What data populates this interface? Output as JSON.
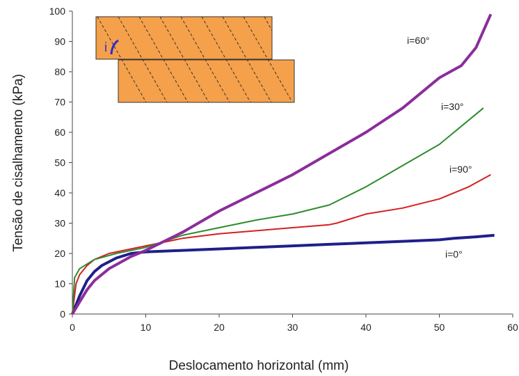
{
  "chart_data": {
    "type": "line",
    "x_label": "Deslocamento horizontal (mm)",
    "y_label": "Tensão de cisalhamento (kPa)",
    "inset_label": "i",
    "xlim": [
      0,
      60
    ],
    "xticks": [
      0,
      10,
      20,
      30,
      40,
      50,
      60
    ],
    "ylim": [
      0,
      100
    ],
    "yticks": [
      0,
      10,
      20,
      30,
      40,
      50,
      60,
      70,
      80,
      90,
      100
    ],
    "series": [
      {
        "name": "i=0°",
        "color": "#1f1f8a",
        "x": [
          0,
          1,
          2,
          3,
          4,
          6,
          8,
          10,
          15,
          20,
          25,
          30,
          35,
          40,
          45,
          50,
          52,
          55,
          57.5
        ],
        "values": [
          0,
          6,
          11,
          14,
          16,
          18.5,
          20,
          20.5,
          21,
          21.5,
          22,
          22.5,
          23,
          23.5,
          24,
          24.5,
          25,
          25.5,
          26
        ]
      },
      {
        "name": "i=30°",
        "color": "#d42020",
        "x": [
          0,
          0.5,
          1,
          2,
          3,
          5,
          7,
          10,
          15,
          20,
          25,
          30,
          35,
          36,
          38,
          40,
          45,
          50,
          54,
          57
        ],
        "values": [
          0,
          10,
          13,
          16,
          18,
          20,
          21,
          22.5,
          25,
          26.5,
          27.5,
          28.5,
          29.5,
          30,
          31.5,
          33,
          35,
          38,
          42,
          46
        ]
      },
      {
        "name": "i=90°",
        "color": "#2e8b2e",
        "x": [
          0,
          0.3,
          1,
          3,
          6,
          10,
          15,
          20,
          25,
          30,
          35,
          40,
          45,
          50,
          53,
          56
        ],
        "values": [
          0,
          12,
          15,
          18,
          20,
          22,
          26,
          28.5,
          31,
          33,
          36,
          42,
          49,
          56,
          62,
          68
        ]
      },
      {
        "name": "i=60°",
        "color": "#8b2d9b",
        "x": [
          0,
          1,
          2,
          3,
          5,
          8,
          10,
          15,
          20,
          25,
          30,
          35,
          40,
          45,
          50,
          53,
          55,
          57
        ],
        "values": [
          0,
          4,
          8,
          11,
          15,
          19,
          21,
          27,
          34,
          40,
          46,
          53,
          60,
          68,
          78,
          82,
          88,
          99
        ]
      }
    ]
  }
}
